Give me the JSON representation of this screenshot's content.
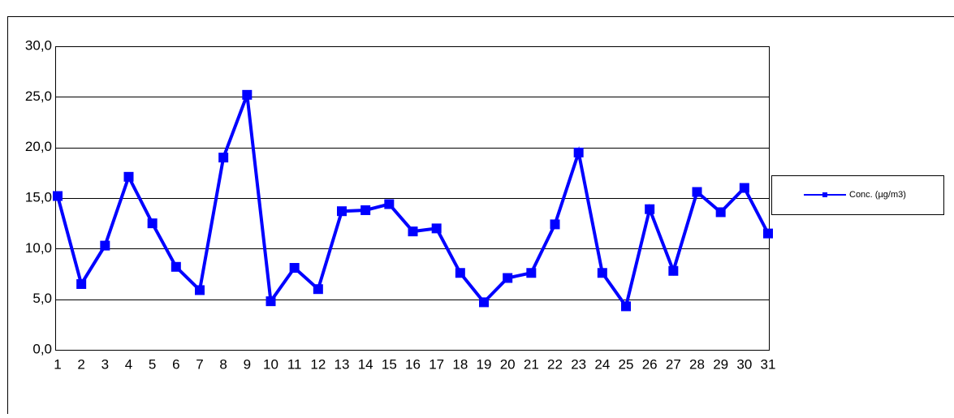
{
  "chart_data": {
    "type": "line",
    "categories": [
      "1",
      "2",
      "3",
      "4",
      "5",
      "6",
      "7",
      "8",
      "9",
      "10",
      "11",
      "12",
      "13",
      "14",
      "15",
      "16",
      "17",
      "18",
      "19",
      "20",
      "21",
      "22",
      "23",
      "24",
      "25",
      "26",
      "27",
      "28",
      "29",
      "30",
      "31"
    ],
    "series": [
      {
        "name": "Conc. (µg/m3)",
        "color": "#0000ff",
        "values": [
          15.2,
          6.5,
          10.3,
          17.1,
          12.5,
          8.2,
          5.9,
          19.0,
          25.2,
          4.8,
          8.1,
          6.0,
          13.7,
          13.8,
          14.4,
          11.7,
          12.0,
          7.6,
          4.7,
          7.1,
          7.6,
          12.4,
          19.5,
          7.6,
          4.3,
          13.9,
          7.8,
          15.6,
          13.6,
          16.0,
          11.5
        ]
      }
    ],
    "ylim": [
      0,
      30
    ],
    "yticks": [
      {
        "value": 0,
        "label": "0,0"
      },
      {
        "value": 5,
        "label": "5,0"
      },
      {
        "value": 10,
        "label": "10,0"
      },
      {
        "value": 15,
        "label": "15,0"
      },
      {
        "value": 20,
        "label": "20,0"
      },
      {
        "value": 25,
        "label": "25,0"
      },
      {
        "value": 30,
        "label": "30,0"
      }
    ],
    "grid": true,
    "legend": "right"
  }
}
